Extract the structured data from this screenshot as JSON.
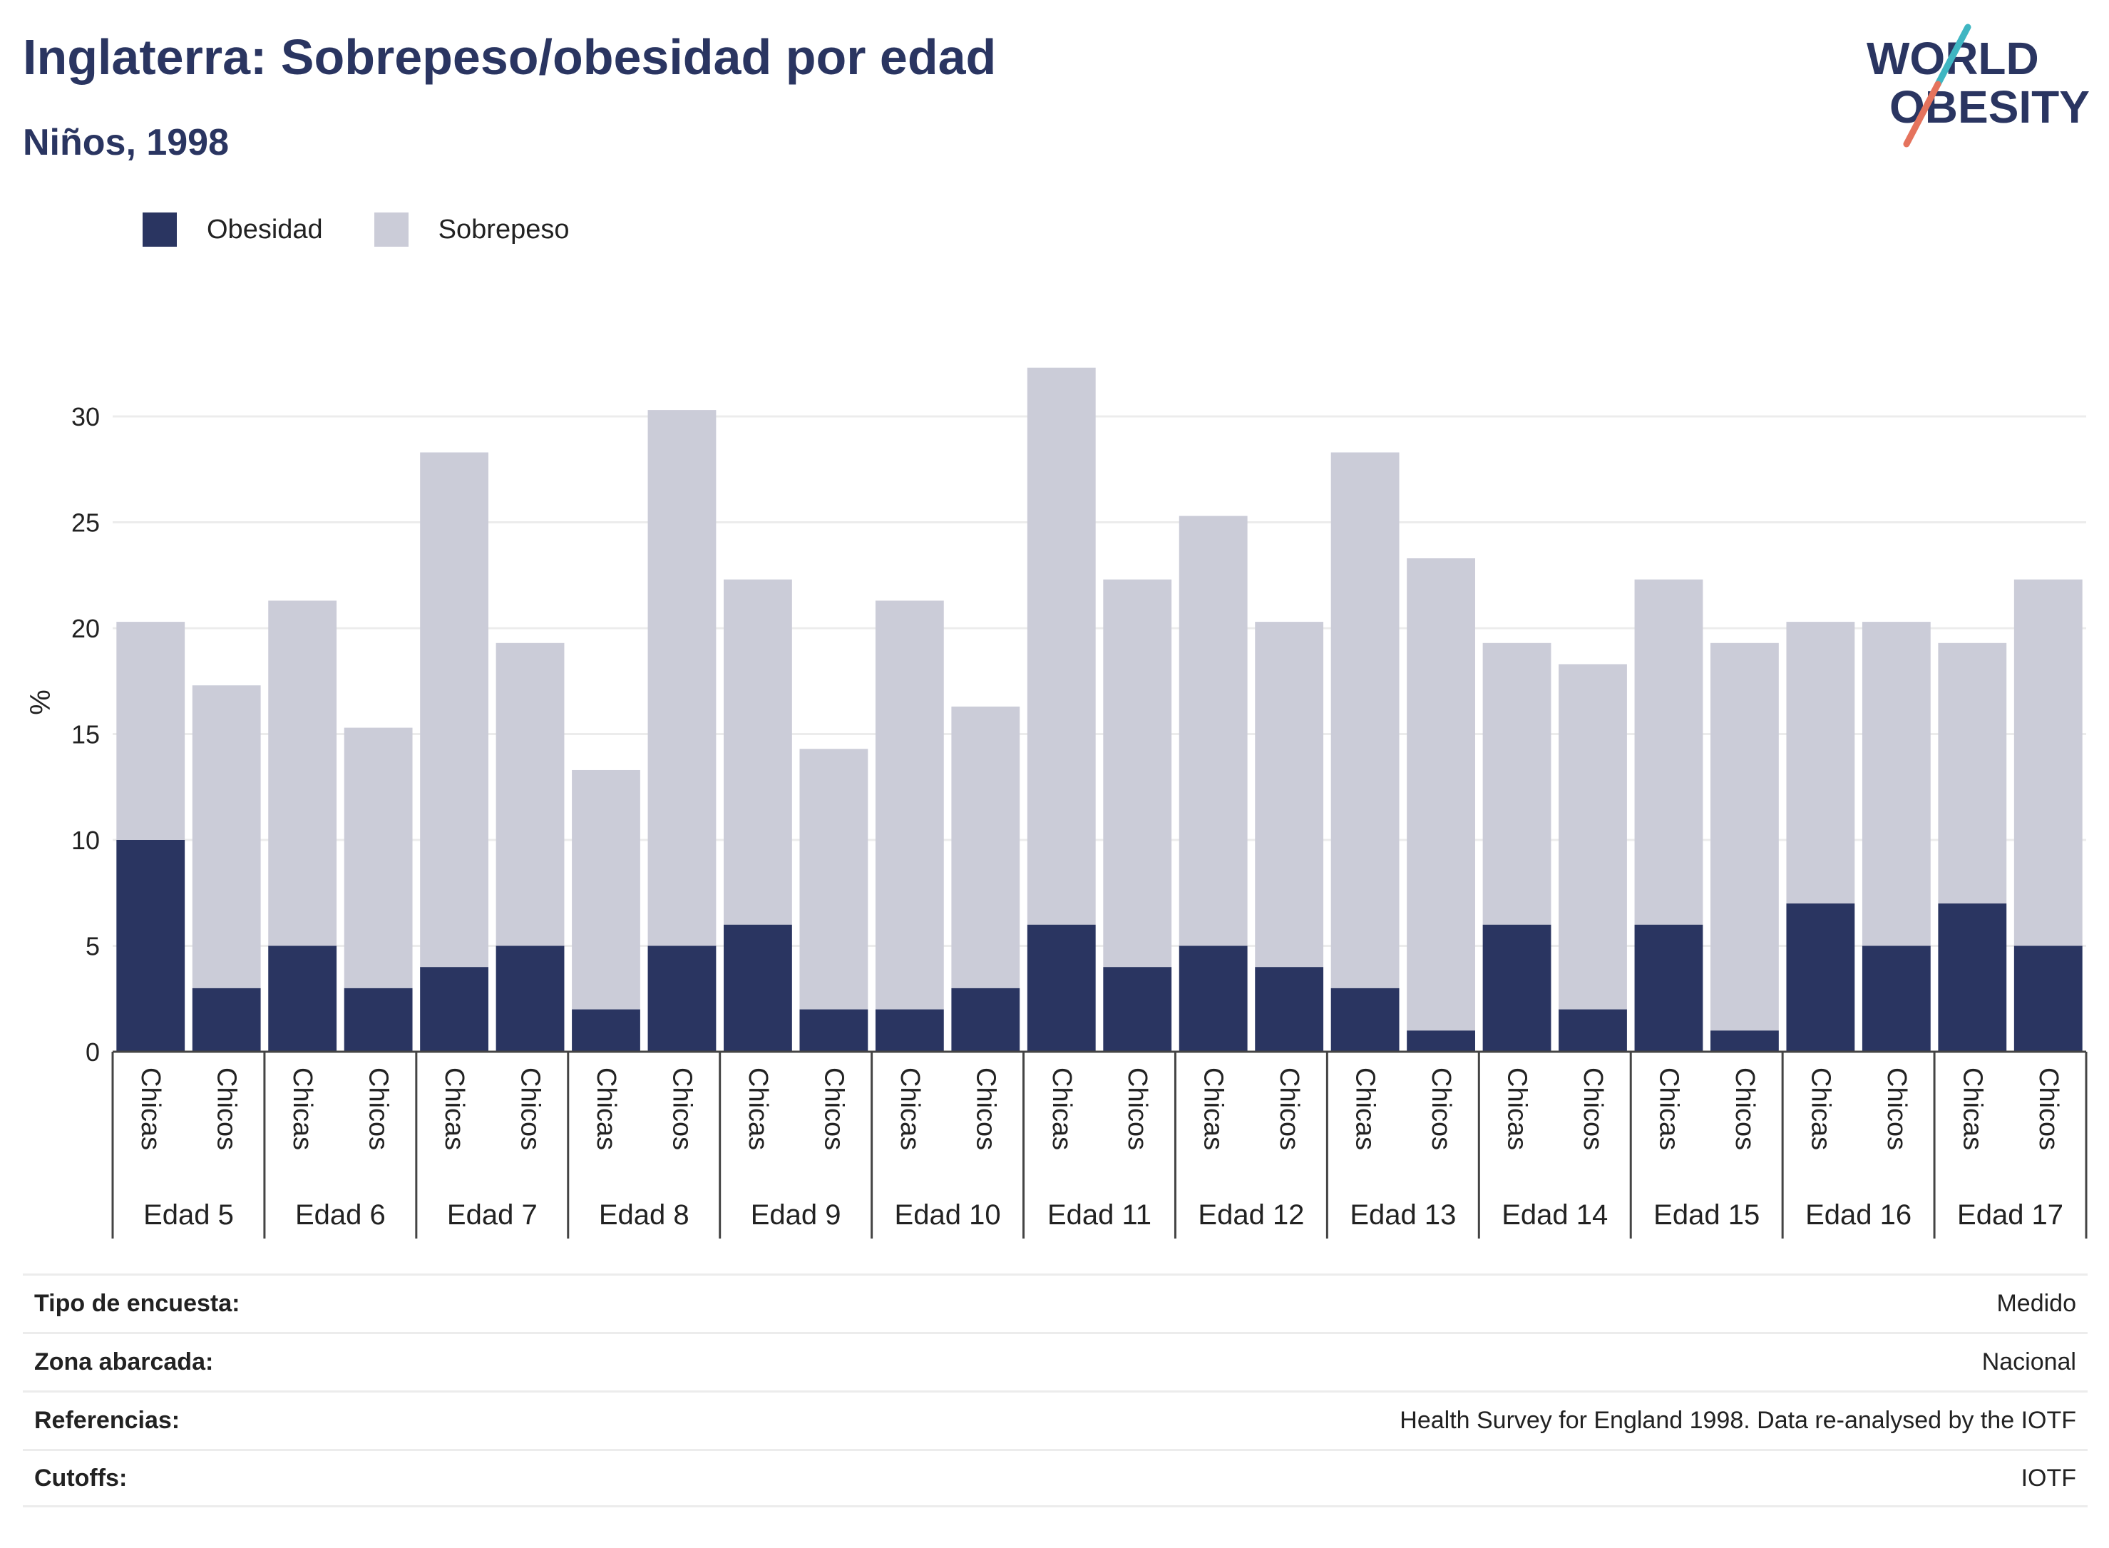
{
  "title": "Inglaterra: Sobrepeso/obesidad por edad",
  "subtitle": "Niños, 1998",
  "logo": {
    "line1": "WORLD",
    "line2": "OBESITY"
  },
  "legend": [
    {
      "label": "Obesidad",
      "color": "#2a3561"
    },
    {
      "label": "Sobrepeso",
      "color": "#cbccd8"
    }
  ],
  "chart_data": {
    "type": "bar",
    "stacked": true,
    "ylabel": "%",
    "ylim": [
      0,
      33
    ],
    "yticks": [
      0,
      5,
      10,
      15,
      20,
      25,
      30
    ],
    "grid": true,
    "legend_position": "top-left",
    "groups": [
      "Edad 5",
      "Edad 6",
      "Edad 7",
      "Edad 8",
      "Edad 9",
      "Edad 10",
      "Edad 11",
      "Edad 12",
      "Edad 13",
      "Edad 14",
      "Edad 15",
      "Edad 16",
      "Edad 17"
    ],
    "subcategories": [
      "Chicas",
      "Chicos"
    ],
    "series": [
      {
        "name": "Obesidad",
        "color": "#2a3561",
        "values": [
          10,
          3,
          5,
          3,
          4,
          5,
          2,
          5,
          6,
          2,
          2,
          3,
          6,
          4,
          5,
          4,
          3,
          1,
          6,
          2,
          6,
          1,
          7,
          5,
          7,
          5
        ]
      },
      {
        "name": "Sobrepeso",
        "color": "#cbccd8",
        "values": [
          10.3,
          14.3,
          16.3,
          12.3,
          24.3,
          14.3,
          11.3,
          25.3,
          16.3,
          12.3,
          19.3,
          13.3,
          26.3,
          18.3,
          20.3,
          16.3,
          25.3,
          22.3,
          13.3,
          16.3,
          16.3,
          18.3,
          13.3,
          15.3,
          12.3,
          17.3
        ]
      }
    ],
    "totals": [
      20.3,
      17.3,
      21.3,
      15.3,
      28.3,
      19.3,
      13.3,
      30.3,
      22.3,
      14.3,
      21.3,
      16.3,
      32.3,
      22.3,
      25.3,
      20.3,
      28.3,
      23.3,
      19.3,
      18.3,
      22.3,
      19.3,
      20.3,
      20.3,
      19.3,
      22.3
    ]
  },
  "meta": [
    {
      "key": "Tipo de encuesta:",
      "value": "Medido"
    },
    {
      "key": "Zona abarcada:",
      "value": "Nacional"
    },
    {
      "key": "Referencias:",
      "value": "Health Survey for England 1998. Data re-analysed by the IOTF"
    },
    {
      "key": "Cutoffs:",
      "value": "IOTF"
    }
  ]
}
